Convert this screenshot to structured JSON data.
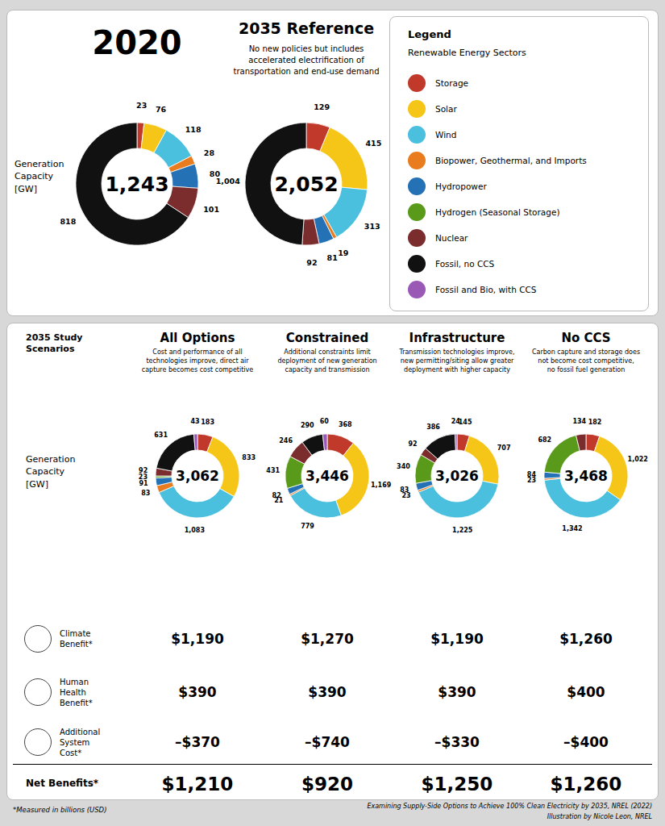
{
  "chart_data": [
    {
      "type": "pie",
      "title": "2020",
      "categories": [
        "Storage",
        "Solar",
        "Wind",
        "Biopower, Geothermal, and Imports",
        "Hydropower",
        "Hydrogen (Seasonal Storage)",
        "Nuclear",
        "Fossil, no CCS",
        "Fossil and Bio, with CCS"
      ],
      "values": [
        23,
        76,
        118,
        28,
        80,
        0,
        101,
        818,
        0
      ],
      "colors": [
        "#c0392b",
        "#f5c518",
        "#4bbfde",
        "#e87c1e",
        "#2471b5",
        "#5a9a1a",
        "#7b2d2d",
        "#111111",
        "#9b59b6"
      ],
      "data_labels": true,
      "legend": "right",
      "annotations": [
        "1,243",
        "Generation\nCapacity\n[GW]",
        "Legend",
        "Renewable Energy Sectors"
      ]
    },
    {
      "type": "pie",
      "title": "2035 Reference",
      "subtitle": "No new policies but includes\naccelerated electrification of\ntransportation and end-use demand",
      "categories": [
        "Storage",
        "Solar",
        "Wind",
        "Biopower, Geothermal, and Imports",
        "Hydropower",
        "Hydrogen (Seasonal Storage)",
        "Nuclear",
        "Fossil, no CCS",
        "Fossil and Bio, with CCS"
      ],
      "values": [
        129,
        415,
        313,
        19,
        81,
        0,
        92,
        1004,
        0
      ],
      "value_labels": [
        "129",
        "415",
        "313",
        "19",
        "81",
        null,
        "92",
        "1,004",
        null
      ],
      "colors": [
        "#c0392b",
        "#f5c518",
        "#4bbfde",
        "#e87c1e",
        "#2471b5",
        "#5a9a1a",
        "#7b2d2d",
        "#111111",
        "#9b59b6"
      ],
      "data_labels": true,
      "annotations": [
        "2,052"
      ]
    },
    {
      "type": "pie",
      "title": "All Options",
      "subtitle": "Cost and performance of all\ntechnologies improve, direct air\ncapture becomes cost competitive",
      "categories": [
        "Storage",
        "Solar",
        "Wind",
        "Biopower, Geothermal, and Imports",
        "Hydropower",
        "Hydrogen (Seasonal Storage)",
        "Nuclear",
        "Fossil, no CCS",
        "Fossil and Bio, with CCS"
      ],
      "values": [
        183,
        833,
        1083,
        83,
        91,
        23,
        92,
        631,
        43
      ],
      "value_labels": [
        "183",
        "833",
        "1,083",
        "83",
        "91",
        "23",
        "92",
        "631",
        "43"
      ],
      "colors": [
        "#c0392b",
        "#f5c518",
        "#4bbfde",
        "#e87c1e",
        "#2471b5",
        "#5a9a1a",
        "#7b2d2d",
        "#111111",
        "#9b59b6"
      ],
      "data_labels": true,
      "annotations": [
        "3,062",
        "2035 Study\nScenarios",
        "Generation\nCapacity\n[GW]"
      ]
    },
    {
      "type": "pie",
      "title": "Constrained",
      "subtitle": "Additional constraints limit\ndeployment of new generation\ncapacity and transmission",
      "categories": [
        "Storage",
        "Solar",
        "Wind",
        "Biopower, Geothermal, and Imports",
        "Hydropower",
        "Hydrogen (Seasonal Storage)",
        "Nuclear",
        "Fossil, no CCS",
        "Fossil and Bio, with CCS"
      ],
      "values": [
        368,
        1169,
        779,
        21,
        82,
        431,
        246,
        290,
        60
      ],
      "value_labels": [
        "368",
        "1,169",
        "779",
        "21",
        "82",
        "431",
        "246",
        "290",
        "60"
      ],
      "colors": [
        "#c0392b",
        "#f5c518",
        "#4bbfde",
        "#e87c1e",
        "#2471b5",
        "#5a9a1a",
        "#7b2d2d",
        "#111111",
        "#9b59b6"
      ],
      "data_labels": true,
      "annotations": [
        "3,446"
      ]
    },
    {
      "type": "pie",
      "title": "Infrastructure",
      "subtitle": "Transmission technologies improve,\nnew permitting/siting allow greater\ndeployment with higher capacity",
      "categories": [
        "Storage",
        "Solar",
        "Wind",
        "Biopower, Geothermal, and Imports",
        "Hydropower",
        "Hydrogen (Seasonal Storage)",
        "Nuclear",
        "Fossil, no CCS",
        "Fossil and Bio, with CCS"
      ],
      "values": [
        145,
        707,
        1225,
        23,
        83,
        340,
        92,
        386,
        24
      ],
      "value_labels": [
        "145",
        "707",
        "1,225",
        "23",
        "83",
        "340",
        "92",
        "386",
        "24"
      ],
      "colors": [
        "#c0392b",
        "#f5c518",
        "#4bbfde",
        "#e87c1e",
        "#2471b5",
        "#5a9a1a",
        "#7b2d2d",
        "#111111",
        "#9b59b6"
      ],
      "data_labels": true,
      "annotations": [
        "3,026"
      ]
    },
    {
      "type": "pie",
      "title": "No CCS",
      "subtitle": "Carbon capture and storage does\nnot become cost competitive,\nno fossil fuel generation",
      "categories": [
        "Storage",
        "Solar",
        "Wind",
        "Biopower, Geothermal, and Imports",
        "Hydropower",
        "Hydrogen (Seasonal Storage)",
        "Nuclear",
        "Fossil, no CCS",
        "Fossil and Bio, with CCS"
      ],
      "values": [
        182,
        1022,
        1342,
        23,
        84,
        682,
        134,
        0,
        0
      ],
      "value_labels": [
        "182",
        "1,022",
        "1,342",
        "23",
        "84",
        "682",
        "134",
        null,
        null
      ],
      "colors": [
        "#c0392b",
        "#f5c518",
        "#4bbfde",
        "#e87c1e",
        "#2471b5",
        "#5a9a1a",
        "#7b2d2d",
        "#111111",
        "#9b59b6"
      ],
      "data_labels": true,
      "annotations": [
        "3,468"
      ]
    },
    {
      "type": "table",
      "categories": [
        "Climate\nBenefit*",
        "Human\nHealth\nBenefit*",
        "Additional\nSystem\nCost*",
        "Net Benefits*"
      ],
      "series": [
        {
          "values": [
            1190,
            390,
            -370,
            1210
          ],
          "value_labels": [
            "$1,190",
            "$390",
            "–$370",
            "$1,210"
          ]
        },
        {
          "values": [
            1270,
            390,
            -740,
            920
          ],
          "value_labels": [
            "$1,270",
            "$390",
            "–$740",
            "$920"
          ]
        },
        {
          "values": [
            1190,
            390,
            -330,
            1250
          ],
          "value_labels": [
            "$1,190",
            "$390",
            "–$330",
            "$1,250"
          ]
        },
        {
          "values": [
            1260,
            400,
            -400,
            1260
          ],
          "value_labels": [
            "$1,260",
            "$400",
            "–$400",
            "$1,260"
          ]
        }
      ],
      "annotations": [
        "*Measured in billions (USD)",
        "Examining Supply-Side Options to Achieve 100% Clean Electricity by 2035, NREL (2022)",
        "Illustration by Nicole Leon, NREL"
      ]
    }
  ]
}
